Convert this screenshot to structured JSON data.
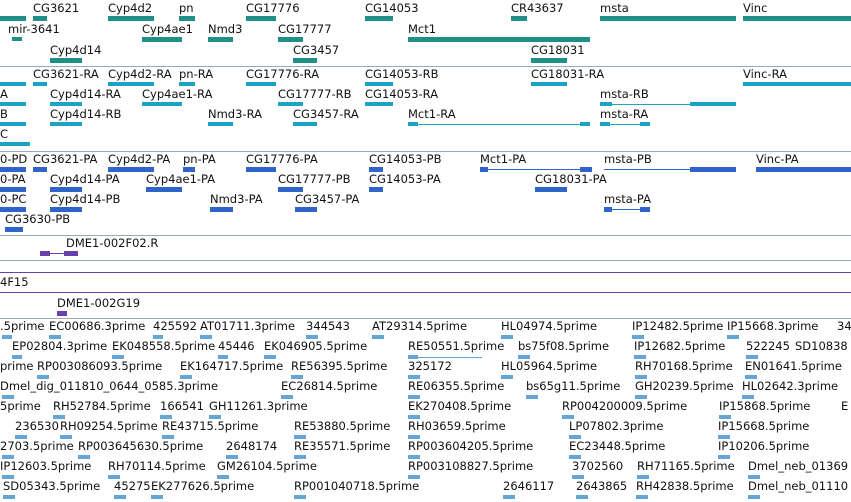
{
  "colors": {
    "gene": "#1f8f88",
    "transcript": "#1aa3c2",
    "protein": "#2f64c8",
    "cdna": "#6a3fae",
    "est": "#66a6d6",
    "separator": "#9aa8b8",
    "track_line": "#6a3fae"
  },
  "gene_track": {
    "labels": [
      "CG3621",
      "Cyp4d2",
      "pn",
      "CG17776",
      "CG14053",
      "CR43637",
      "msta",
      "Vinc",
      "mir-3641",
      "Cyp4ae1",
      "Nmd3",
      "CG17777",
      "Mct1",
      "Cyp4d14",
      "CG3457",
      "CG18031"
    ]
  },
  "transcript_track": {
    "labels": [
      "CG3621-RA",
      "Cyp4d2-RA",
      "pn-RA",
      "CG17776-RA",
      "CG14053-RB",
      "CG18031-RA",
      "Vinc-RA",
      "A",
      "Cyp4d14-RA",
      "Cyp4ae1-RA",
      "CG17777-RB",
      "CG14053-RA",
      "msta-RB",
      "B",
      "Cyp4d14-RB",
      "Nmd3-RA",
      "CG3457-RA",
      "Mct1-RA",
      "msta-RA",
      "C"
    ]
  },
  "protein_track": {
    "labels": [
      "0-PD",
      "CG3621-PA",
      "Cyp4d2-PA",
      "pn-PA",
      "CG17776-PA",
      "CG14053-PB",
      "Mct1-PA",
      "msta-PB",
      "Vinc-PA",
      "0-PA",
      "Cyp4d14-PA",
      "Cyp4ae1-PA",
      "CG17777-PB",
      "CG14053-PA",
      "CG18031-PA",
      "0-PC",
      "Cyp4d14-PB",
      "Nmd3-PA",
      "CG3457-PA",
      "msta-PA",
      "CG3630-PB"
    ]
  },
  "cdna_track": {
    "labels": [
      "DME1-002F02.R",
      "4F15",
      "DME1-002G19"
    ]
  },
  "est_track": {
    "labels": [
      ".5prime",
      "EC00686.3prime",
      "425592",
      "AT01711.3prime",
      "344543",
      "AT29314.5prime",
      "HL04974.5prime",
      "IP12482.5prime",
      "IP15668.3prime",
      "34",
      "EP02804.3prime",
      "EK048558.5prime",
      "45446",
      "EK046905.5prime",
      "RE50551.5prime",
      "bs75f08.5prime",
      "IP12682.5prime",
      "522245",
      "SD10838",
      "prime",
      "RP003086093.5prime",
      "EK164717.5prime",
      "RE56395.5prime",
      "325172",
      "HL05964.5prime",
      "RH70168.5prime",
      "EN01641.5prime",
      "Dmel_dig_011810_0644_0585.3prime",
      "EC26814.5prime",
      "RE06355.5prime",
      "bs65g11.5prime",
      "GH20239.5prime",
      "HL02642.3prime",
      "5prime",
      "RH52784.5prime",
      "166541",
      "GH11261.3prime",
      "EK270408.5prime",
      "RP004200009.5prime",
      "IP15868.5prime",
      "E",
      "236530",
      "RH09254.5prime",
      "RE43715.5prime",
      "RE53880.5prime",
      "RH03659.5prime",
      "LP07802.3prime",
      "IP15668.5prime",
      "2703.5prime",
      "RP003645630.5prime",
      "2648174",
      "RE35571.5prime",
      "RP003604205.5prime",
      "EC23448.5prime",
      "IP10206.5prime",
      "IP12603.5prime",
      "RH70114.5prime",
      "GM26104.5prime",
      "RP003108827.5prime",
      "3702560",
      "RH71165.5prime",
      "Dmel_neb_01369",
      "SD05343.5prime",
      "45275",
      "EK277626.5prime",
      "RP001040718.5prime",
      "2646117",
      "2643865",
      "RH42838.5prime",
      "Dmel_neb_01110"
    ]
  }
}
